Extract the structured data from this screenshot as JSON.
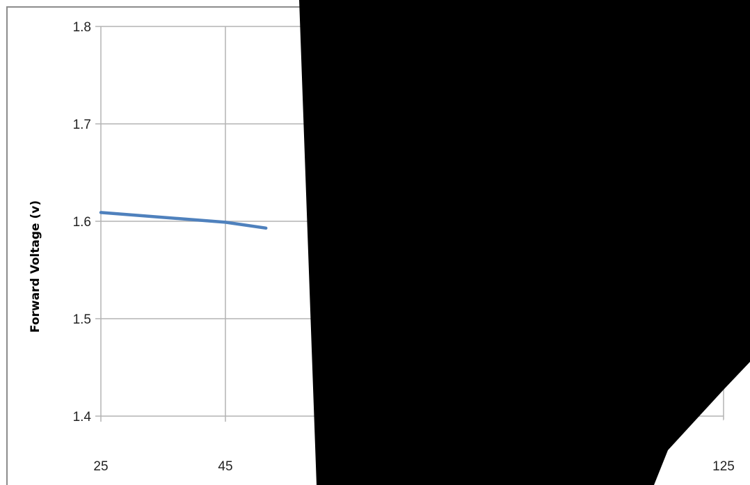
{
  "chart_data": {
    "type": "line",
    "title": "",
    "xlabel": "",
    "ylabel": "Forward Voltage (v)",
    "x_ticks": [
      25,
      45,
      125
    ],
    "x_range": [
      25,
      125
    ],
    "y_ticks": [
      "1.4",
      "1.5",
      "1.6",
      "1.7",
      "1.8"
    ],
    "ylim": [
      1.4,
      1.8
    ],
    "grid": true,
    "legend": "none",
    "series": [
      {
        "x": [
          25,
          45,
          51.5
        ],
        "y": [
          1.609,
          1.599,
          1.593
        ]
      }
    ],
    "colors": {
      "series": "#4f81bd",
      "grid": "#b3b3b3",
      "frame": "#8c8c8c",
      "occlusion": "#000000"
    },
    "occlusion": "a black shape covers the right part of the plot"
  }
}
